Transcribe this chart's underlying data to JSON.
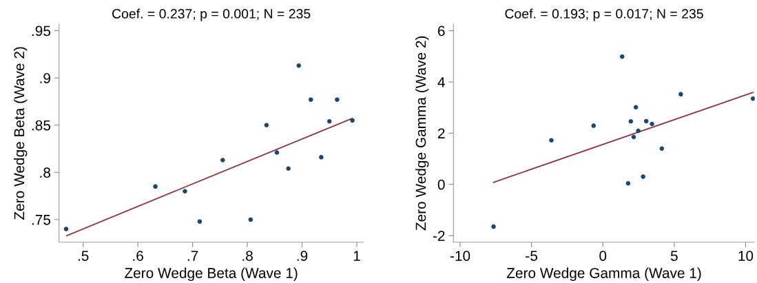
{
  "chart_data": [
    {
      "type": "scatter",
      "title": "Coef. = 0.237; p = 0.001; N = 235",
      "xlabel": "Zero Wedge Beta (Wave 1)",
      "ylabel": "Zero Wedge Beta (Wave 2)",
      "xlim": [
        0.456,
        1.012
      ],
      "ylim": [
        0.726,
        0.957
      ],
      "xticks": [
        {
          "value": 0.5,
          "label": ".5"
        },
        {
          "value": 0.6,
          "label": ".6"
        },
        {
          "value": 0.7,
          "label": ".7"
        },
        {
          "value": 0.8,
          "label": ".8"
        },
        {
          "value": 0.9,
          "label": ".9"
        },
        {
          "value": 1,
          "label": "1"
        }
      ],
      "yticks": [
        {
          "value": 0.75,
          "label": ".75"
        },
        {
          "value": 0.8,
          "label": ".8"
        },
        {
          "value": 0.85,
          "label": ".85"
        },
        {
          "value": 0.9,
          "label": ".9"
        },
        {
          "value": 0.95,
          "label": ".95"
        }
      ],
      "grid": false,
      "legend": false,
      "series": [
        {
          "marker": "circle",
          "color": "#1a476f",
          "x": [
            0.469,
            0.632,
            0.686,
            0.713,
            0.755,
            0.806,
            0.835,
            0.854,
            0.875,
            0.894,
            0.916,
            0.935,
            0.95,
            0.964,
            0.992
          ],
          "values": [
            0.74,
            0.785,
            0.78,
            0.748,
            0.813,
            0.75,
            0.85,
            0.821,
            0.804,
            0.913,
            0.877,
            0.816,
            0.854,
            0.877,
            0.855
          ]
        },
        {
          "type": "line",
          "color": "#90353b",
          "x": [
            0.47,
            0.991
          ],
          "values": [
            0.733,
            0.857
          ]
        }
      ]
    },
    {
      "type": "scatter",
      "title": "Coef. = 0.193; p = 0.017; N = 235",
      "xlabel": "Zero Wedge Gamma (Wave 1)",
      "ylabel": "Zero Wedge Gamma (Wave 2)",
      "xlim": [
        -10.47,
        10.64
      ],
      "ylim": [
        -2.26,
        6.26
      ],
      "xticks": [
        -10,
        -5,
        0,
        5,
        10
      ],
      "yticks": [
        -2,
        0,
        2,
        4,
        6
      ],
      "grid": false,
      "legend": false,
      "series": [
        {
          "marker": "circle",
          "color": "#1a476f",
          "x": [
            -7.66,
            -3.61,
            -0.65,
            1.35,
            1.77,
            1.96,
            2.16,
            2.31,
            2.48,
            2.82,
            3.04,
            3.44,
            4.13,
            5.46,
            10.52
          ],
          "values": [
            -1.65,
            1.72,
            2.29,
            4.99,
            0.04,
            2.46,
            1.85,
            3.01,
            2.09,
            0.3,
            2.47,
            2.36,
            1.4,
            3.52,
            3.35
          ]
        },
        {
          "type": "line",
          "color": "#90353b",
          "x": [
            -7.66,
            10.52
          ],
          "values": [
            0.08,
            3.59
          ]
        }
      ]
    }
  ]
}
